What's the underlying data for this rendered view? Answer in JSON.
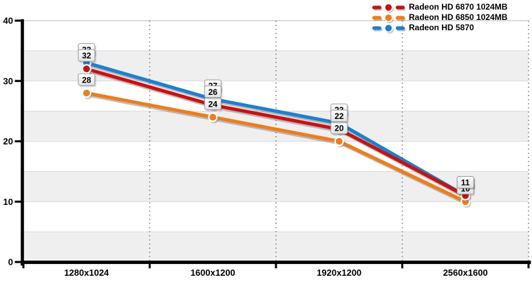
{
  "chart_data": {
    "type": "line",
    "title": "",
    "xlabel": "",
    "ylabel": "",
    "categories": [
      "1280x1024",
      "1600x1200",
      "1920x1200",
      "2560x1600"
    ],
    "series": [
      {
        "name": "Radeon HD 6870 1024MB",
        "color": "#c81210",
        "values": [
          32,
          26,
          22,
          11
        ]
      },
      {
        "name": "Radeon HD 6850 1024MB",
        "color": "#ee7d1a",
        "values": [
          28,
          24,
          20,
          10
        ]
      },
      {
        "name": "Radeon HD 5870",
        "color": "#1e7fd2",
        "values": [
          33,
          27,
          23,
          11
        ]
      }
    ],
    "ylim": [
      0,
      40
    ],
    "y_ticks": [
      0,
      10,
      20,
      30,
      40
    ],
    "band_step": 5,
    "grid": "vertical-dotted-and-horizontal-bands",
    "legend_position": "top-right",
    "point_labels_visible": true
  },
  "colors": {
    "band_fill": "#efefef",
    "band_edge": "#d9d9d9",
    "plot_top_line": "#c4c4c4",
    "dotted_grid": "#8a8a8a",
    "axis": "#000000",
    "line_shadow": "#828282",
    "label_box_border": "#9b9b9b",
    "label_box_top": "#ffffff",
    "label_box_bottom": "#e2e2e2",
    "tick_label": "#000000"
  }
}
